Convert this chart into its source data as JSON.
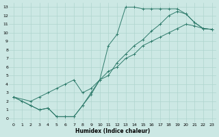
{
  "xlabel": "Humidex (Indice chaleur)",
  "bg_color": "#cce8e4",
  "line_color": "#2d7a6a",
  "grid_color": "#aed4ce",
  "xlim": [
    -0.5,
    23.5
  ],
  "ylim": [
    -0.5,
    13.5
  ],
  "xticks": [
    0,
    1,
    2,
    3,
    4,
    5,
    6,
    7,
    8,
    9,
    10,
    11,
    12,
    13,
    14,
    15,
    16,
    17,
    18,
    19,
    20,
    21,
    22,
    23
  ],
  "yticks": [
    0,
    1,
    2,
    3,
    4,
    5,
    6,
    7,
    8,
    9,
    10,
    11,
    12,
    13
  ],
  "series": [
    {
      "x": [
        0,
        1,
        2,
        3,
        4,
        5,
        6,
        7,
        8,
        9,
        10,
        11,
        12,
        13,
        14,
        15,
        16,
        17,
        18,
        19,
        20,
        21,
        22,
        23
      ],
      "y": [
        2.5,
        2.0,
        1.5,
        1.0,
        1.2,
        0.2,
        0.2,
        0.2,
        1.5,
        3.0,
        4.5,
        8.5,
        9.8,
        13.0,
        13.0,
        12.8,
        12.8,
        12.8,
        12.8,
        12.8,
        12.2,
        11.2,
        10.5,
        10.4
      ]
    },
    {
      "x": [
        0,
        1,
        2,
        3,
        4,
        5,
        6,
        7,
        8,
        9,
        10,
        11,
        12,
        13,
        14,
        15,
        16,
        17,
        18,
        19,
        20,
        21,
        22,
        23
      ],
      "y": [
        2.5,
        2.0,
        1.5,
        1.0,
        1.2,
        0.2,
        0.2,
        0.2,
        1.5,
        2.8,
        4.5,
        5.0,
        6.5,
        7.5,
        8.5,
        9.2,
        10.2,
        11.0,
        12.0,
        12.5,
        12.2,
        11.2,
        10.5,
        10.4
      ]
    },
    {
      "x": [
        0,
        2,
        3,
        4,
        5,
        6,
        7,
        8,
        9,
        10,
        11,
        12,
        13,
        14,
        15,
        16,
        17,
        18,
        19,
        20,
        21,
        22,
        23
      ],
      "y": [
        2.5,
        2.0,
        2.5,
        3.0,
        3.5,
        4.0,
        4.5,
        3.0,
        3.5,
        4.5,
        5.5,
        6.0,
        7.0,
        7.5,
        8.5,
        9.0,
        9.5,
        10.0,
        10.5,
        11.0,
        10.8,
        10.5,
        10.4
      ]
    }
  ]
}
